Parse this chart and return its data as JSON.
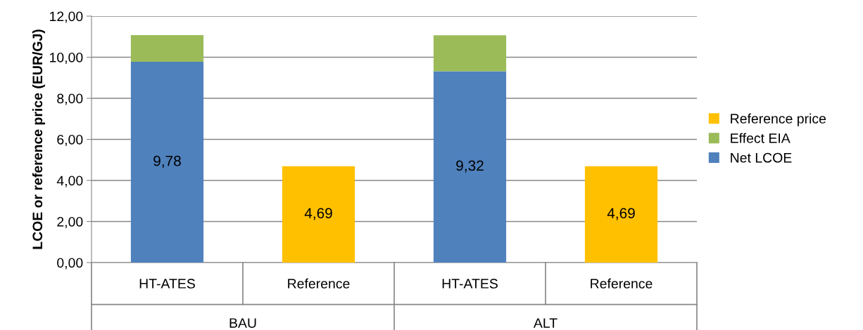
{
  "chart_data": {
    "type": "bar",
    "stacked": true,
    "ylabel": "LCOE or reference price (EUR/GJ)",
    "categories": [
      "HT-ATES",
      "Reference",
      "HT-ATES",
      "Reference"
    ],
    "series": [
      {
        "name": "Net LCOE",
        "color": "#4f81bd",
        "values": [
          9.78,
          null,
          9.32,
          null
        ],
        "value_labels": [
          "9,78",
          null,
          "9,32",
          null
        ]
      },
      {
        "name": "Effect EIA",
        "color": "#9bbb59",
        "values": [
          1.3,
          null,
          1.75,
          null
        ]
      },
      {
        "name": "Reference price",
        "color": "#ffc000",
        "values": [
          null,
          4.69,
          null,
          4.69
        ],
        "value_labels": [
          null,
          "4,69",
          null,
          "4,69"
        ]
      }
    ],
    "annotations": [
      "BAU",
      "ALT"
    ],
    "ylim": [
      0,
      12
    ],
    "yticks": [
      {
        "value": 0,
        "label": "0,00"
      },
      {
        "value": 2,
        "label": "2,00"
      },
      {
        "value": 4,
        "label": "4,00"
      },
      {
        "value": 6,
        "label": "6,00"
      },
      {
        "value": 8,
        "label": "8,00"
      },
      {
        "value": 10,
        "label": "10,00"
      },
      {
        "value": 12,
        "label": "12,00"
      }
    ],
    "grid": "y",
    "legend": "right"
  }
}
